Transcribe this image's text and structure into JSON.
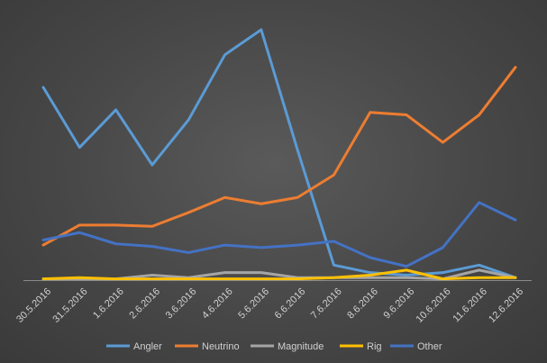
{
  "chart_data": {
    "type": "line",
    "title": "",
    "xlabel": "",
    "ylabel": "",
    "categories": [
      "30.5.2016",
      "31.5.2016",
      "1.6.2016",
      "2.6.2016",
      "3.6.2016",
      "4.6.2016",
      "5.6.2016",
      "6.6.2016",
      "7.6.2016",
      "8.6.2016",
      "9.6.2016",
      "10.6.2016",
      "11.6.2016",
      "12.6.2016"
    ],
    "ylim": [
      0,
      100
    ],
    "grid": false,
    "legend": "bottom",
    "series": [
      {
        "name": "Angler",
        "color": "#5b9bd5",
        "values": [
          77,
          53,
          68,
          46,
          64,
          90,
          100,
          52,
          6,
          3,
          2,
          3,
          6,
          1
        ]
      },
      {
        "name": "Neutrino",
        "color": "#ed7d31",
        "values": [
          14,
          22,
          22,
          21.5,
          27,
          33,
          30.5,
          33,
          42,
          67,
          66,
          55,
          66,
          85
        ]
      },
      {
        "name": "Magnitude",
        "color": "#a5a5a5",
        "values": [
          0.5,
          0.5,
          0.5,
          2,
          1,
          3,
          3,
          1,
          1,
          1,
          1,
          0.5,
          4,
          1
        ]
      },
      {
        "name": "Rig",
        "color": "#ffc000",
        "values": [
          0.5,
          1,
          0.5,
          0.5,
          0.5,
          0.5,
          0.5,
          0.5,
          1,
          2,
          4,
          0.5,
          1,
          1
        ]
      },
      {
        "name": "Other",
        "color": "#4472c4",
        "values": [
          16,
          19,
          14.5,
          13.5,
          11,
          14,
          13,
          14,
          15.5,
          9,
          5.5,
          13,
          31,
          24
        ]
      }
    ]
  }
}
